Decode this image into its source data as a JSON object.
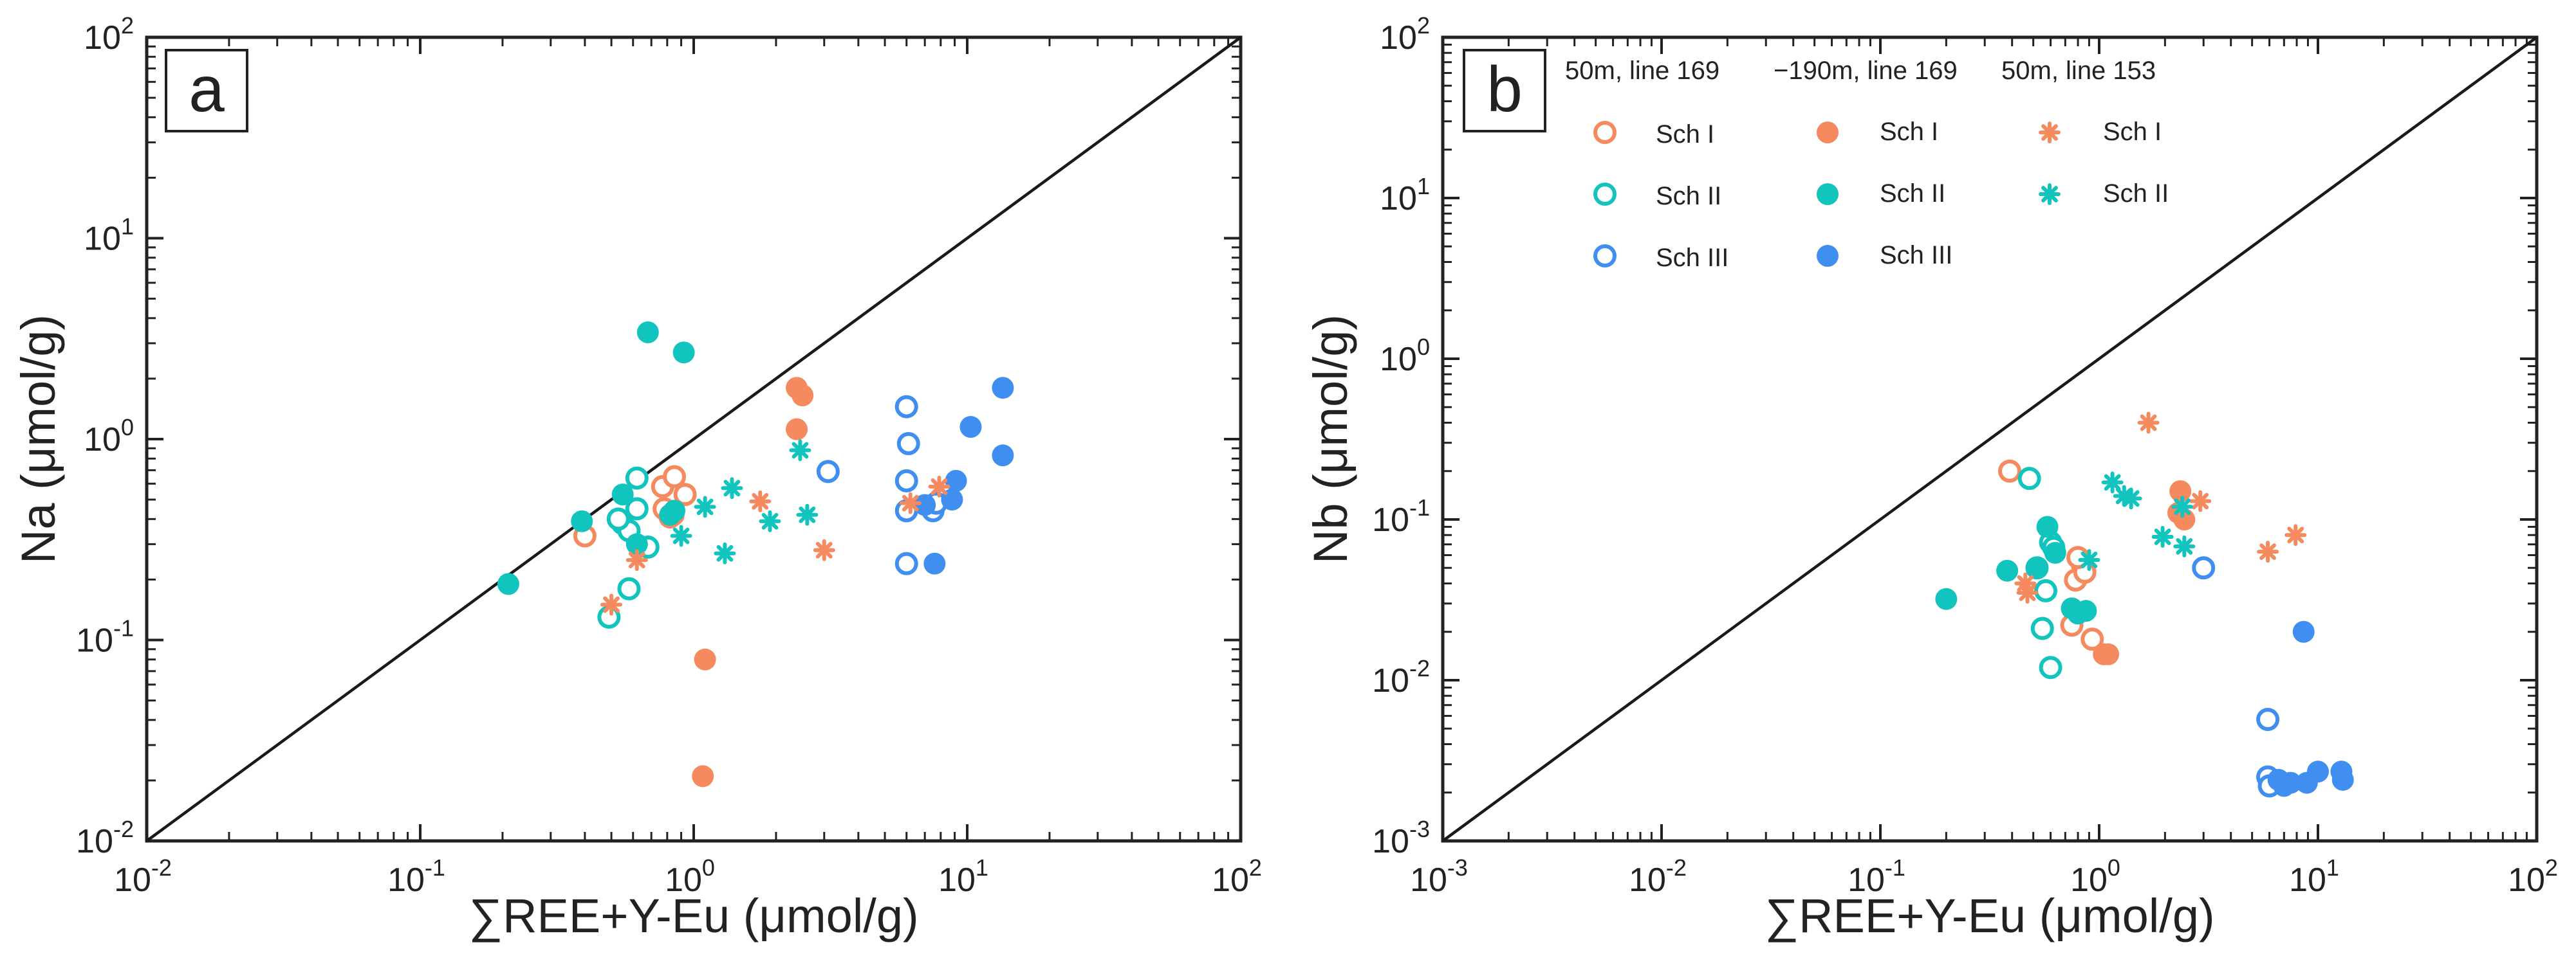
{
  "colors": {
    "sch1": "#F58A5F",
    "sch2": "#12C4BE",
    "sch3": "#3F8EF0",
    "axis": "#222222"
  },
  "symbols": {
    "line169_50m": "open-circle",
    "line169_m190m": "filled-circle",
    "line153_50m": "asterisk"
  },
  "chart_data": [
    {
      "type": "scatter",
      "panel": "a",
      "scale": "log-log",
      "xlabel": "∑REE+Y-Eu (μmol/g)",
      "ylabel": "Na (μmol/g)",
      "xlim": [
        0.01,
        100
      ],
      "ylim": [
        0.01,
        100
      ],
      "x_ticks": [
        {
          "v": 0.01,
          "base": "10",
          "exp": "-2"
        },
        {
          "v": 0.1,
          "base": "10",
          "exp": "-1"
        },
        {
          "v": 1,
          "base": "10",
          "exp": "0"
        },
        {
          "v": 10,
          "base": "10",
          "exp": "1"
        },
        {
          "v": 100,
          "base": "10",
          "exp": "2"
        }
      ],
      "y_ticks": [
        {
          "v": 0.01,
          "base": "10",
          "exp": "-2"
        },
        {
          "v": 0.1,
          "base": "10",
          "exp": "-1"
        },
        {
          "v": 1,
          "base": "10",
          "exp": "0"
        },
        {
          "v": 10,
          "base": "10",
          "exp": "1"
        },
        {
          "v": 100,
          "base": "10",
          "exp": "2"
        }
      ],
      "reference_line": "1:1",
      "series": [
        {
          "name": "50m, line 169 Sch I",
          "symbol": "open-circle",
          "color": "sch1",
          "points": [
            [
              0.4,
              0.33
            ],
            [
              0.77,
              0.58
            ],
            [
              0.85,
              0.65
            ],
            [
              0.93,
              0.53
            ],
            [
              0.78,
              0.45
            ],
            [
              0.84,
              0.42
            ],
            [
              0.82,
              0.41
            ]
          ]
        },
        {
          "name": "50m, line 169 Sch II",
          "symbol": "open-circle",
          "color": "sch2",
          "points": [
            [
              0.49,
              0.13
            ],
            [
              0.58,
              0.18
            ],
            [
              0.55,
              0.38
            ],
            [
              0.58,
              0.35
            ],
            [
              0.62,
              0.64
            ],
            [
              0.62,
              0.45
            ],
            [
              0.68,
              0.29
            ],
            [
              0.53,
              0.4
            ]
          ]
        },
        {
          "name": "50m, line 169 Sch III",
          "symbol": "open-circle",
          "color": "sch3",
          "points": [
            [
              6.0,
              1.45
            ],
            [
              6.1,
              0.95
            ],
            [
              6.0,
              0.62
            ],
            [
              6.0,
              0.44
            ],
            [
              6.0,
              0.24
            ],
            [
              7.5,
              0.44
            ],
            [
              7.7,
              0.48
            ],
            [
              3.1,
              0.69
            ]
          ]
        },
        {
          "name": "-190m, line 169 Sch I",
          "symbol": "filled-circle",
          "color": "sch1",
          "points": [
            [
              2.38,
              1.8
            ],
            [
              2.5,
              1.65
            ],
            [
              2.38,
              1.12
            ],
            [
              1.1,
              0.08
            ],
            [
              1.08,
              0.021
            ]
          ]
        },
        {
          "name": "-190m, line 169 Sch II",
          "symbol": "filled-circle",
          "color": "sch2",
          "points": [
            [
              0.21,
              0.19
            ],
            [
              0.39,
              0.39
            ],
            [
              0.55,
              0.53
            ],
            [
              0.68,
              3.4
            ],
            [
              0.92,
              2.7
            ],
            [
              0.82,
              0.42
            ],
            [
              0.85,
              0.44
            ],
            [
              0.62,
              0.3
            ]
          ]
        },
        {
          "name": "-190m, line 169 Sch III",
          "symbol": "filled-circle",
          "color": "sch3",
          "points": [
            [
              13.5,
              1.8
            ],
            [
              10.3,
              1.15
            ],
            [
              13.5,
              0.83
            ],
            [
              9.1,
              0.62
            ],
            [
              8.8,
              0.5
            ],
            [
              7.0,
              0.47
            ],
            [
              7.6,
              0.24
            ]
          ]
        },
        {
          "name": "50m, line 153 Sch I",
          "symbol": "asterisk",
          "color": "sch1",
          "points": [
            [
              0.5,
              0.15
            ],
            [
              0.62,
              0.25
            ],
            [
              1.75,
              0.49
            ],
            [
              3.0,
              0.28
            ],
            [
              6.2,
              0.48
            ],
            [
              7.9,
              0.58
            ]
          ]
        },
        {
          "name": "50m, line 153 Sch II",
          "symbol": "asterisk",
          "color": "sch2",
          "points": [
            [
              0.9,
              0.33
            ],
            [
              1.1,
              0.46
            ],
            [
              1.38,
              0.57
            ],
            [
              1.3,
              0.27
            ],
            [
              1.9,
              0.39
            ],
            [
              2.45,
              0.88
            ],
            [
              2.6,
              0.42
            ]
          ]
        }
      ]
    },
    {
      "type": "scatter",
      "panel": "b",
      "scale": "log-log",
      "xlabel": "∑REE+Y-Eu (μmol/g)",
      "ylabel": "Nb (μmol/g)",
      "xlim": [
        0.001,
        100
      ],
      "ylim": [
        0.001,
        100
      ],
      "x_ticks": [
        {
          "v": 0.001,
          "base": "10",
          "exp": "-3"
        },
        {
          "v": 0.01,
          "base": "10",
          "exp": "-2"
        },
        {
          "v": 0.1,
          "base": "10",
          "exp": "-1"
        },
        {
          "v": 1,
          "base": "10",
          "exp": "0"
        },
        {
          "v": 10,
          "base": "10",
          "exp": "1"
        },
        {
          "v": 100,
          "base": "10",
          "exp": "2"
        }
      ],
      "y_ticks": [
        {
          "v": 0.001,
          "base": "10",
          "exp": "-3"
        },
        {
          "v": 0.01,
          "base": "10",
          "exp": "-2"
        },
        {
          "v": 0.1,
          "base": "10",
          "exp": "-1"
        },
        {
          "v": 1,
          "base": "10",
          "exp": "0"
        },
        {
          "v": 10,
          "base": "10",
          "exp": "1"
        },
        {
          "v": 100,
          "base": "10",
          "exp": "2"
        }
      ],
      "reference_line": "1:1",
      "legend": {
        "position": "top",
        "columns": [
          {
            "header": "50m, line 169",
            "symbol": "open-circle",
            "entries": [
              {
                "label": "Sch I",
                "color": "sch1"
              },
              {
                "label": "Sch II",
                "color": "sch2"
              },
              {
                "label": "Sch III",
                "color": "sch3"
              }
            ]
          },
          {
            "header": "−190m, line 169",
            "symbol": "filled-circle",
            "entries": [
              {
                "label": "Sch I",
                "color": "sch1"
              },
              {
                "label": "Sch II",
                "color": "sch2"
              },
              {
                "label": "Sch III",
                "color": "sch3"
              }
            ]
          },
          {
            "header": "50m, line 153",
            "symbol": "asterisk",
            "entries": [
              {
                "label": "Sch I",
                "color": "sch1"
              },
              {
                "label": "Sch II",
                "color": "sch2"
              }
            ]
          }
        ]
      },
      "series": [
        {
          "name": "50m, line 169 Sch I",
          "symbol": "open-circle",
          "color": "sch1",
          "points": [
            [
              0.39,
              0.2
            ],
            [
              0.78,
              0.042
            ],
            [
              0.84,
              0.052
            ],
            [
              0.86,
              0.047
            ],
            [
              0.93,
              0.018
            ],
            [
              0.75,
              0.022
            ],
            [
              0.8,
              0.058
            ]
          ]
        },
        {
          "name": "50m, line 169 Sch II",
          "symbol": "open-circle",
          "color": "sch2",
          "points": [
            [
              0.48,
              0.18
            ],
            [
              0.55,
              0.021
            ],
            [
              0.6,
              0.012
            ],
            [
              0.6,
              0.072
            ],
            [
              0.62,
              0.067
            ],
            [
              0.52,
              0.05
            ],
            [
              0.57,
              0.036
            ]
          ]
        },
        {
          "name": "50m, line 169 Sch III",
          "symbol": "open-circle",
          "color": "sch3",
          "points": [
            [
              3.0,
              0.05
            ],
            [
              5.9,
              0.0057
            ],
            [
              5.9,
              0.0025
            ],
            [
              6.0,
              0.0022
            ]
          ]
        },
        {
          "name": "-190m, line 169 Sch I",
          "symbol": "filled-circle",
          "color": "sch1",
          "points": [
            [
              2.35,
              0.15
            ],
            [
              2.3,
              0.11
            ],
            [
              2.45,
              0.1
            ],
            [
              1.05,
              0.0145
            ],
            [
              1.1,
              0.0145
            ]
          ]
        },
        {
          "name": "-190m, line 169 Sch II",
          "symbol": "filled-circle",
          "color": "sch2",
          "points": [
            [
              0.2,
              0.032
            ],
            [
              0.38,
              0.048
            ],
            [
              0.52,
              0.05
            ],
            [
              0.58,
              0.09
            ],
            [
              0.63,
              0.062
            ],
            [
              0.75,
              0.028
            ],
            [
              0.8,
              0.026
            ],
            [
              0.87,
              0.027
            ]
          ]
        },
        {
          "name": "-190m, line 169 Sch III",
          "symbol": "filled-circle",
          "color": "sch3",
          "points": [
            [
              8.6,
              0.02
            ],
            [
              7.0,
              0.0022
            ],
            [
              7.5,
              0.0023
            ],
            [
              8.9,
              0.0023
            ],
            [
              10.0,
              0.0027
            ],
            [
              12.8,
              0.0027
            ],
            [
              13.0,
              0.0024
            ],
            [
              6.6,
              0.0024
            ]
          ]
        },
        {
          "name": "50m, line 153 Sch I",
          "symbol": "asterisk",
          "color": "sch1",
          "points": [
            [
              1.68,
              0.4
            ],
            [
              2.9,
              0.13
            ],
            [
              5.9,
              0.063
            ],
            [
              7.9,
              0.08
            ],
            [
              0.47,
              0.035
            ],
            [
              0.46,
              0.04
            ]
          ]
        },
        {
          "name": "50m, line 153 Sch II",
          "symbol": "asterisk",
          "color": "sch2",
          "points": [
            [
              1.15,
              0.17
            ],
            [
              1.3,
              0.14
            ],
            [
              1.4,
              0.135
            ],
            [
              1.95,
              0.078
            ],
            [
              2.45,
              0.068
            ],
            [
              2.4,
              0.12
            ],
            [
              0.9,
              0.056
            ]
          ]
        }
      ]
    }
  ]
}
